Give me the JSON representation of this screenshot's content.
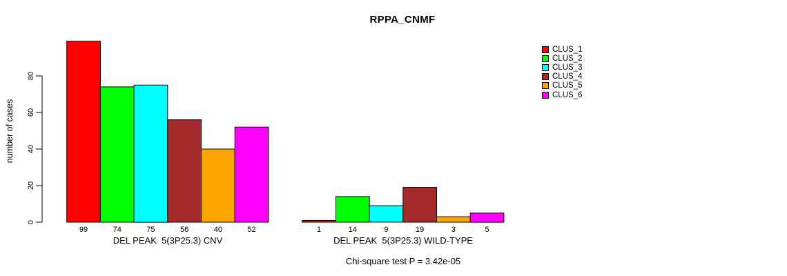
{
  "chart_data": {
    "type": "bar",
    "title": "RPPA_CNMF",
    "ylabel": "number of cases",
    "xlabel": "",
    "ylim": [
      0,
      99
    ],
    "yticks": [
      0,
      20,
      40,
      60,
      80
    ],
    "grid": false,
    "legend_position": "top-right",
    "series_names": [
      "CLUS_1",
      "CLUS_2",
      "CLUS_3",
      "CLUS_4",
      "CLUS_5",
      "CLUS_6"
    ],
    "series_colors": [
      "#ff0000",
      "#00ff00",
      "#00ffff",
      "#a52a2a",
      "#ffa500",
      "#ff00ff"
    ],
    "groups": [
      {
        "label": "DEL PEAK  5(3P25.3) CNV",
        "bar_labels": [
          "99",
          "74",
          "75",
          "56",
          "40",
          "52"
        ],
        "values": [
          99,
          74,
          75,
          56,
          40,
          52
        ]
      },
      {
        "label": "DEL PEAK  5(3P25.3) WILD-TYPE",
        "bar_labels": [
          "1",
          "14",
          "9",
          "19",
          "3",
          "5"
        ],
        "values": [
          1,
          14,
          9,
          19,
          3,
          5
        ]
      }
    ],
    "annotation": "Chi-square test P = 3.42e-05"
  },
  "legend": {
    "items": [
      {
        "label": "CLUS_1",
        "color": "#ff0000"
      },
      {
        "label": "CLUS_2",
        "color": "#00ff00"
      },
      {
        "label": "CLUS_3",
        "color": "#00ffff"
      },
      {
        "label": "CLUS_4",
        "color": "#a52a2a"
      },
      {
        "label": "CLUS_5",
        "color": "#ffa500"
      },
      {
        "label": "CLUS_6",
        "color": "#ff00ff"
      }
    ]
  },
  "colors": {
    "axis": "#000000",
    "background": "#ffffff"
  }
}
